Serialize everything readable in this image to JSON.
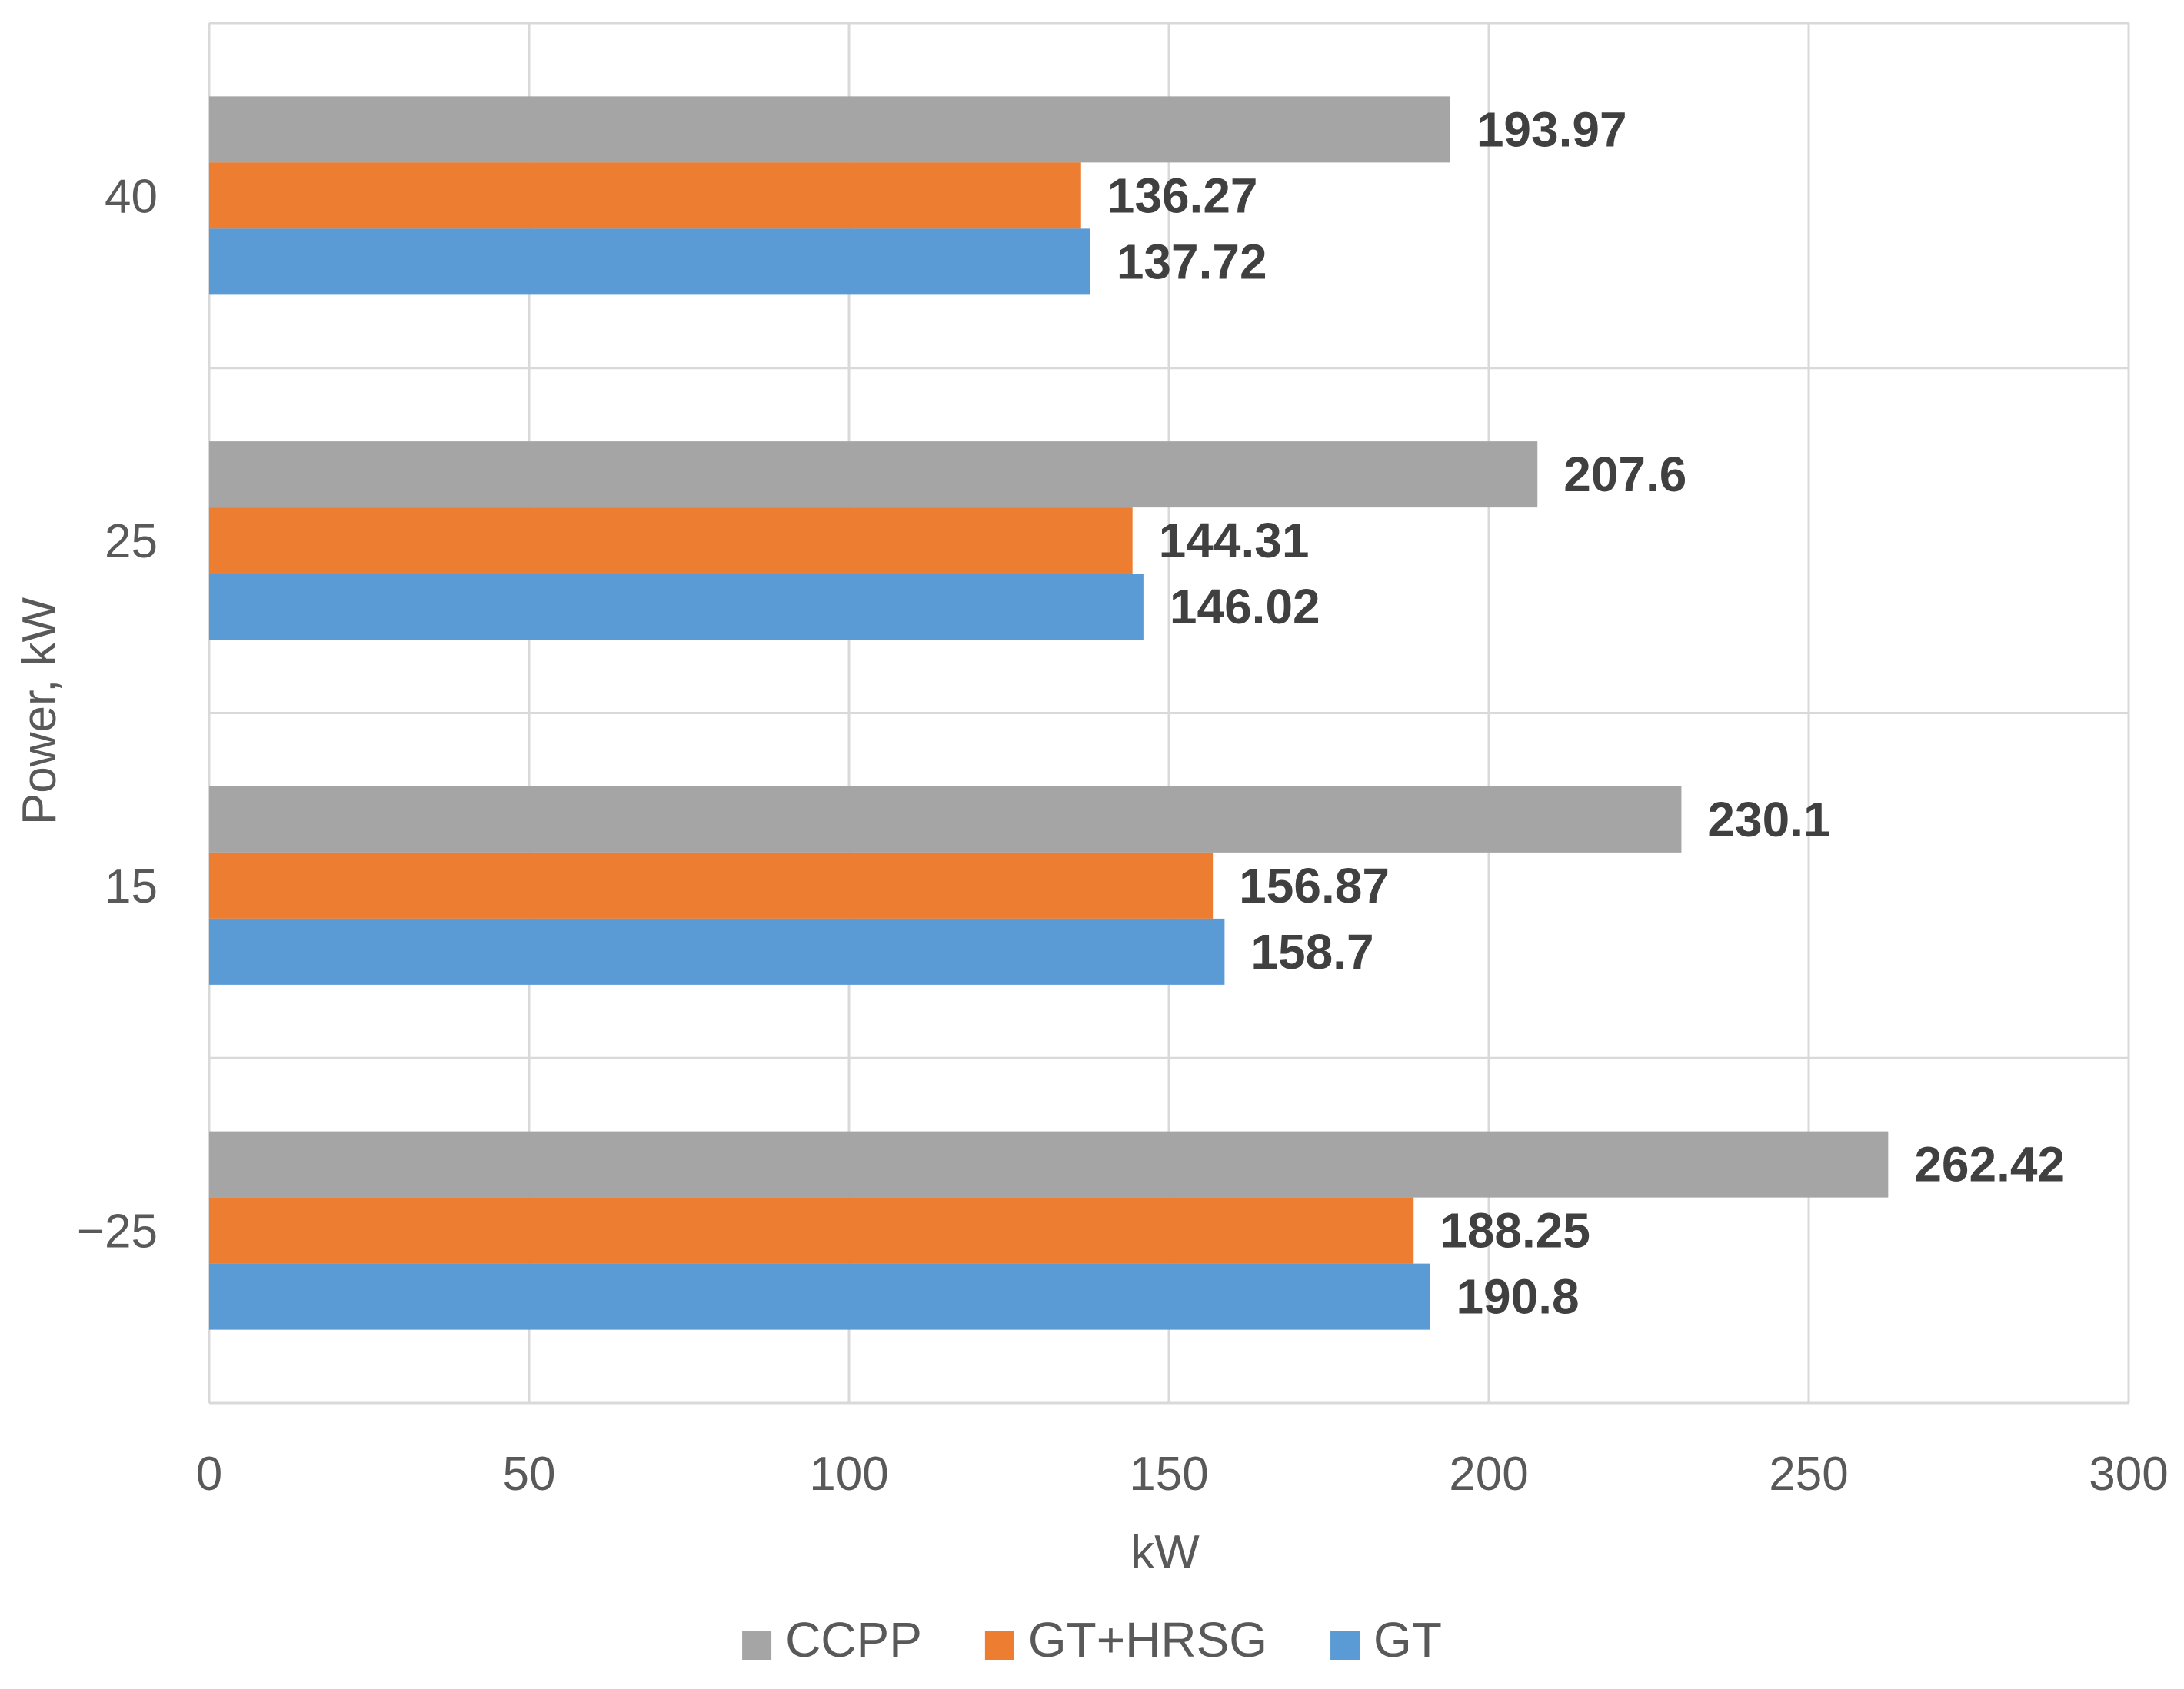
{
  "chart_data": {
    "type": "bar",
    "orientation": "horizontal",
    "title": "",
    "xlabel": "kW",
    "ylabel": "Power, kW",
    "xlim": [
      0,
      300
    ],
    "x_ticks": [
      "0",
      "50",
      "100",
      "150",
      "200",
      "250",
      "300"
    ],
    "grid": true,
    "legend_position": "bottom",
    "categories": [
      "40",
      "25",
      "15",
      "−25"
    ],
    "series": [
      {
        "name": "CCPP",
        "color": "#a5a5a5",
        "values": [
          193.97,
          207.6,
          230.1,
          262.42
        ],
        "labels": [
          "193.97",
          "207.6",
          "230.1",
          "262.42"
        ]
      },
      {
        "name": "GT+HRSG",
        "color": "#ed7d31",
        "values": [
          136.27,
          144.31,
          156.87,
          188.25
        ],
        "labels": [
          "136.27",
          "144.31",
          "156.87",
          "188.25"
        ]
      },
      {
        "name": "GT",
        "color": "#5b9bd5",
        "values": [
          137.72,
          146.02,
          158.7,
          190.8
        ],
        "labels": [
          "137.72",
          "146.02",
          "158.7",
          "190.8"
        ]
      }
    ]
  }
}
